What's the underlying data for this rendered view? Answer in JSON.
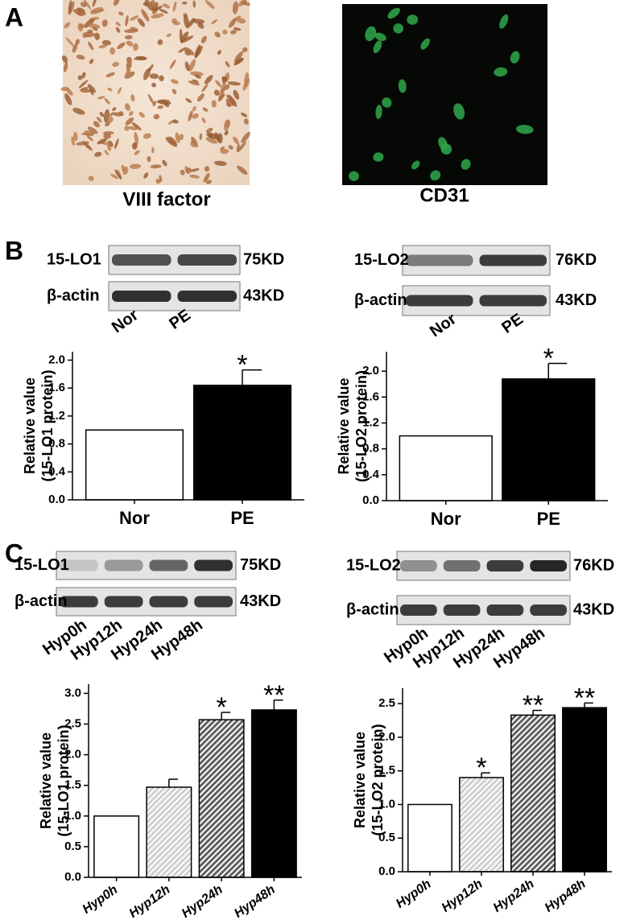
{
  "panels": {
    "a": "A",
    "b": "B",
    "c": "C"
  },
  "micrographs": [
    {
      "caption": "VIII factor"
    },
    {
      "caption": "CD31"
    }
  ],
  "blots": [
    {
      "rows": [
        {
          "label": "15-LO1",
          "size": "75KD"
        },
        {
          "label": "β-actin",
          "size": "43KD"
        }
      ],
      "lanes": [
        "Nor",
        "PE"
      ]
    },
    {
      "rows": [
        {
          "label": "15-LO2",
          "size": "76KD"
        },
        {
          "label": "β-actin",
          "size": "43KD"
        }
      ],
      "lanes": [
        "Nor",
        "PE"
      ]
    },
    {
      "rows": [
        {
          "label": "15-LO1",
          "size": "75KD"
        },
        {
          "label": "β-actin",
          "size": "43KD"
        }
      ],
      "lanes": [
        "Hyp0h",
        "Hyp12h",
        "Hyp24h",
        "Hyp48h"
      ]
    },
    {
      "rows": [
        {
          "label": "15-LO2",
          "size": "76KD"
        },
        {
          "label": "β-actin",
          "size": "43KD"
        }
      ],
      "lanes": [
        "Hyp0h",
        "Hyp12h",
        "Hyp24h",
        "Hyp48h"
      ]
    }
  ],
  "chart_data": [
    {
      "type": "bar",
      "y_label": [
        "Relative value",
        "(15-LO1 protein)"
      ],
      "categories": [
        "Nor",
        "PE"
      ],
      "values": [
        1.0,
        1.64
      ],
      "errors": [
        0,
        0.22
      ],
      "value_annotations": [
        null,
        "*"
      ],
      "colors": [
        "#ffffff",
        "#000000"
      ],
      "hatch": [
        false,
        false
      ],
      "ylim": [
        0,
        2.12
      ],
      "yticks": [
        0.0,
        0.4,
        0.8,
        1.2,
        1.6,
        2.0
      ]
    },
    {
      "type": "bar",
      "y_label": [
        "Relative value",
        "(15-LO2 protein)"
      ],
      "categories": [
        "Nor",
        "PE"
      ],
      "values": [
        1.0,
        1.88
      ],
      "errors": [
        0,
        0.24
      ],
      "value_annotations": [
        null,
        "*"
      ],
      "colors": [
        "#ffffff",
        "#000000"
      ],
      "hatch": [
        false,
        false
      ],
      "ylim": [
        0,
        2.3
      ],
      "yticks": [
        0.0,
        0.4,
        0.8,
        1.2,
        1.6,
        2.0
      ]
    },
    {
      "type": "bar",
      "y_label": [
        "Relative value",
        "(15-LO1 protein)"
      ],
      "categories": [
        "Hyp0h",
        "Hyp12h",
        "Hyp24h",
        "Hyp48h"
      ],
      "values": [
        1.0,
        1.47,
        2.57,
        2.73
      ],
      "errors": [
        0,
        0.13,
        0.12,
        0.16
      ],
      "value_annotations": [
        null,
        null,
        "*",
        "**"
      ],
      "colors": [
        "#ffffff",
        "#d0d0d0",
        "#606060",
        "#000000"
      ],
      "hatch": [
        false,
        true,
        true,
        false
      ],
      "ylim": [
        0,
        3.15
      ],
      "yticks": [
        0.0,
        0.5,
        1.0,
        1.5,
        2.0,
        2.5,
        3.0
      ]
    },
    {
      "type": "bar",
      "y_label": [
        "Relative value",
        "(15-LO2 protein)"
      ],
      "categories": [
        "Hyp0h",
        "Hyp12h",
        "Hyp24h",
        "Hyp48h"
      ],
      "values": [
        1.0,
        1.4,
        2.33,
        2.44
      ],
      "errors": [
        0,
        0.07,
        0.07,
        0.07
      ],
      "value_annotations": [
        null,
        "*",
        "**",
        "**"
      ],
      "colors": [
        "#ffffff",
        "#d0d0d0",
        "#606060",
        "#000000"
      ],
      "hatch": [
        false,
        true,
        true,
        false
      ],
      "ylim": [
        0,
        2.73
      ],
      "yticks": [
        0.0,
        0.5,
        1.0,
        1.5,
        2.0,
        2.5
      ]
    }
  ]
}
